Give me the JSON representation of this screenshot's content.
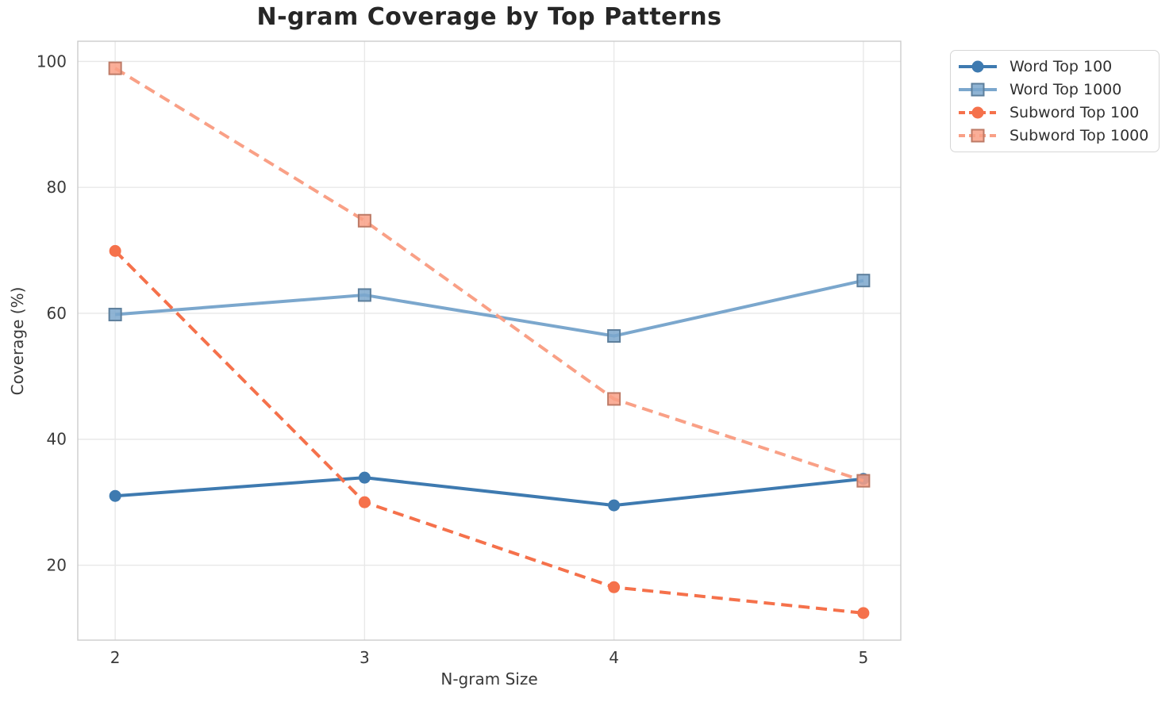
{
  "chart_data": {
    "type": "line",
    "title": "N-gram Coverage by Top Patterns",
    "xlabel": "N-gram Size",
    "ylabel": "Coverage (%)",
    "x": [
      2,
      3,
      4,
      5
    ],
    "x_tick_labels": [
      "2",
      "3",
      "4",
      "5"
    ],
    "y_tick_values": [
      20,
      40,
      60,
      80,
      100
    ],
    "xlim": [
      1.85,
      5.15
    ],
    "ylim": [
      8.1,
      103.2
    ],
    "grid": true,
    "legend_position": "outside-upper-right",
    "series": [
      {
        "name": "Word Top 100",
        "values": [
          31.0,
          33.9,
          29.5,
          33.7
        ],
        "color": "#3E7AB0",
        "line_style": "solid",
        "marker": "circle"
      },
      {
        "name": "Word Top 1000",
        "values": [
          59.8,
          62.9,
          56.4,
          65.2
        ],
        "color": "#7BA7CD",
        "line_style": "solid",
        "marker": "square"
      },
      {
        "name": "Subword Top 100",
        "values": [
          69.9,
          30.0,
          16.5,
          12.4
        ],
        "color": "#F5714B",
        "line_style": "dashed",
        "marker": "circle"
      },
      {
        "name": "Subword Top 1000",
        "values": [
          98.9,
          74.7,
          46.4,
          33.4
        ],
        "color": "#F9A086",
        "line_style": "dashed",
        "marker": "square"
      }
    ]
  },
  "colors": {
    "background": "#FFFFFF",
    "grid": "#E8E8E8",
    "spine": "#CCCCCC",
    "title_text": "#262626",
    "tick_text": "#3A3A3A",
    "legend_border": "#D6D6D6"
  }
}
